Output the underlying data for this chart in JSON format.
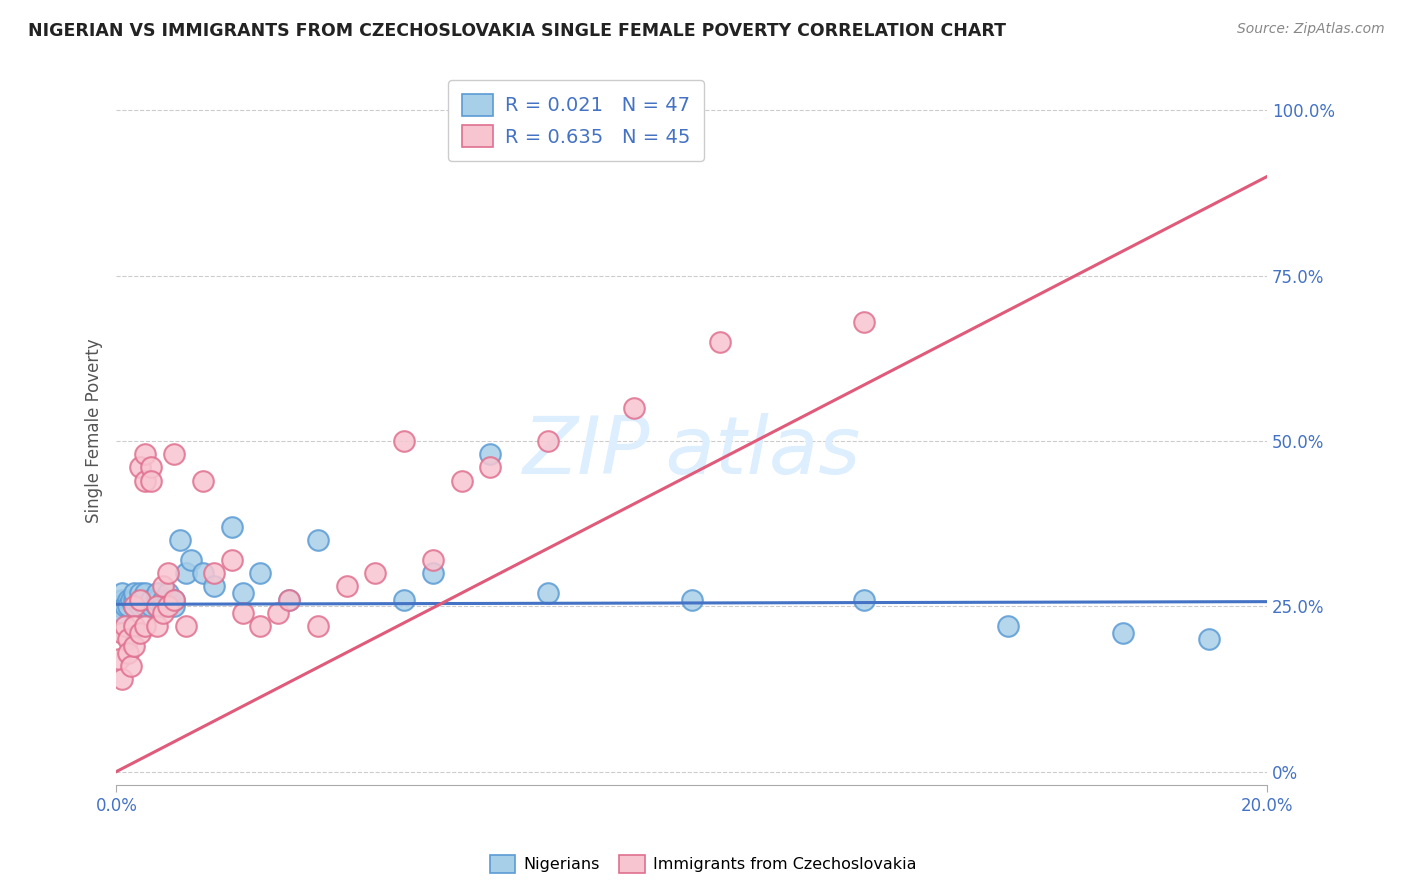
{
  "title": "NIGERIAN VS IMMIGRANTS FROM CZECHOSLOVAKIA SINGLE FEMALE POVERTY CORRELATION CHART",
  "source": "Source: ZipAtlas.com",
  "ylabel": "Single Female Poverty",
  "ytick_values": [
    0.0,
    0.25,
    0.5,
    0.75,
    1.0
  ],
  "ytick_labels": [
    "0%",
    "25.0%",
    "50.0%",
    "75.0%",
    "100.0%"
  ],
  "xtick_values": [
    0.0,
    0.2
  ],
  "xtick_labels": [
    "0.0%",
    "20.0%"
  ],
  "legend1_r": "0.021",
  "legend1_n": "47",
  "legend2_r": "0.635",
  "legend2_n": "45",
  "blue_face": "#a8cfe8",
  "blue_edge": "#5b9bd5",
  "pink_face": "#f7c5d0",
  "pink_edge": "#e07090",
  "blue_line_color": "#4472c4",
  "pink_line_color": "#e05a7a",
  "label_color": "#4472c4",
  "watermark_color": "#ddeeff",
  "blue_scatter_x": [
    0.0005,
    0.001,
    0.001,
    0.001,
    0.0015,
    0.002,
    0.002,
    0.0025,
    0.003,
    0.003,
    0.003,
    0.004,
    0.004,
    0.004,
    0.005,
    0.005,
    0.005,
    0.006,
    0.006,
    0.007,
    0.007,
    0.007,
    0.008,
    0.008,
    0.009,
    0.009,
    0.01,
    0.01,
    0.011,
    0.012,
    0.013,
    0.015,
    0.017,
    0.02,
    0.022,
    0.025,
    0.03,
    0.035,
    0.05,
    0.055,
    0.065,
    0.075,
    0.1,
    0.13,
    0.155,
    0.175,
    0.19
  ],
  "blue_scatter_y": [
    0.25,
    0.26,
    0.27,
    0.24,
    0.25,
    0.26,
    0.25,
    0.26,
    0.25,
    0.26,
    0.27,
    0.25,
    0.26,
    0.27,
    0.25,
    0.26,
    0.27,
    0.25,
    0.26,
    0.25,
    0.26,
    0.27,
    0.26,
    0.25,
    0.26,
    0.27,
    0.25,
    0.26,
    0.35,
    0.3,
    0.32,
    0.3,
    0.28,
    0.37,
    0.27,
    0.3,
    0.26,
    0.35,
    0.26,
    0.3,
    0.48,
    0.27,
    0.26,
    0.26,
    0.22,
    0.21,
    0.2
  ],
  "pink_scatter_x": [
    0.0005,
    0.001,
    0.001,
    0.0015,
    0.002,
    0.002,
    0.0025,
    0.003,
    0.003,
    0.003,
    0.004,
    0.004,
    0.004,
    0.005,
    0.005,
    0.005,
    0.006,
    0.006,
    0.007,
    0.007,
    0.008,
    0.008,
    0.009,
    0.009,
    0.01,
    0.01,
    0.012,
    0.015,
    0.017,
    0.02,
    0.022,
    0.025,
    0.028,
    0.03,
    0.035,
    0.04,
    0.045,
    0.05,
    0.055,
    0.06,
    0.065,
    0.075,
    0.09,
    0.105,
    0.13
  ],
  "pink_scatter_y": [
    0.17,
    0.21,
    0.14,
    0.22,
    0.2,
    0.18,
    0.16,
    0.25,
    0.22,
    0.19,
    0.26,
    0.21,
    0.46,
    0.48,
    0.44,
    0.22,
    0.46,
    0.44,
    0.25,
    0.22,
    0.28,
    0.24,
    0.3,
    0.25,
    0.26,
    0.48,
    0.22,
    0.44,
    0.3,
    0.32,
    0.24,
    0.22,
    0.24,
    0.26,
    0.22,
    0.28,
    0.3,
    0.5,
    0.32,
    0.44,
    0.46,
    0.5,
    0.55,
    0.65,
    0.68
  ],
  "blue_line_x": [
    0.0,
    0.2
  ],
  "blue_line_y": [
    0.253,
    0.257
  ],
  "pink_line_x": [
    0.0,
    0.2
  ],
  "pink_line_y": [
    0.0,
    0.9
  ],
  "xlim": [
    0.0,
    0.2
  ],
  "ylim": [
    -0.02,
    1.05
  ]
}
